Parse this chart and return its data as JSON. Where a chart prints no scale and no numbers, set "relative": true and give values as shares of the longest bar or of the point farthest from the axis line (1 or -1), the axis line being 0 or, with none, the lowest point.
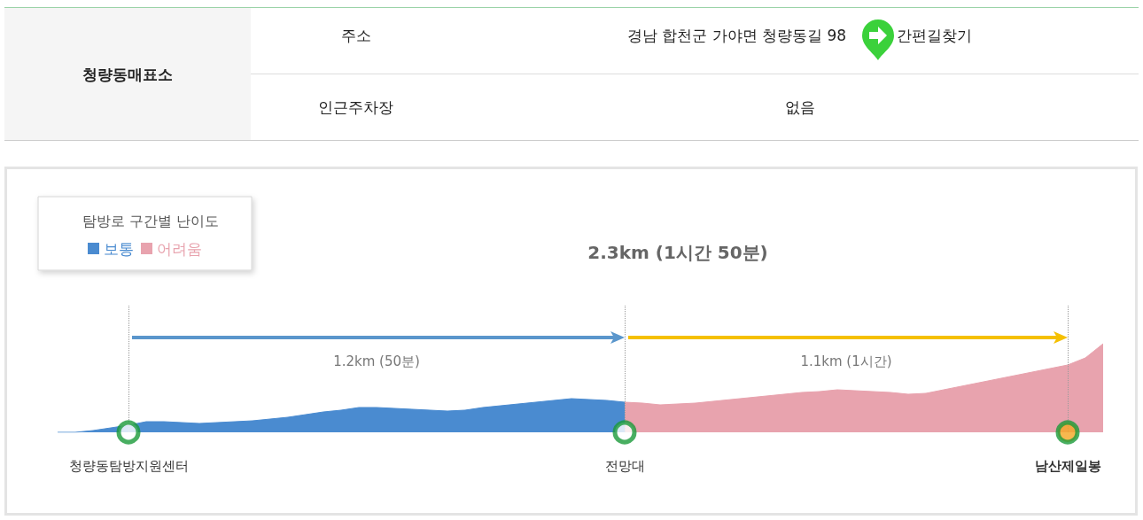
{
  "chart_data": {
    "type": "area",
    "relative": true,
    "title": "2.3km (1시간 50분)",
    "legend_title": "탐방로 구간별 난이도",
    "legend": "top left",
    "annotations": [
      "청량동매표소",
      "주소",
      "경남 합천군 가야면 청량동길 98",
      "간편길찾기",
      "인근주차장",
      "없음",
      "1.2km (50분)",
      "1.1km (1시간)"
    ],
    "categories": [
      null,
      null,
      null,
      null,
      "청량동탐방지원센터",
      null,
      null,
      null,
      null,
      null,
      null,
      null,
      null,
      null,
      null,
      null,
      null,
      null,
      null,
      null,
      null,
      null,
      null,
      null,
      null,
      null,
      null,
      null,
      null,
      null,
      null,
      null,
      "전망대",
      null,
      null,
      null,
      null,
      null,
      null,
      null,
      null,
      null,
      null,
      null,
      null,
      null,
      null,
      null,
      null,
      null,
      null,
      null,
      null,
      null,
      null,
      null,
      null,
      "남산제일봉",
      null,
      null
    ],
    "series": [
      {
        "name": "보통",
        "color": "#4a8bd0",
        "values": [
          0,
          0,
          0.02,
          0.05,
          0.08,
          0.12,
          0.12,
          0.11,
          0.1,
          0.11,
          0.12,
          0.13,
          0.15,
          0.17,
          0.2,
          0.23,
          0.25,
          0.28,
          0.28,
          0.27,
          0.26,
          0.25,
          0.24,
          0.25,
          0.28,
          0.3,
          0.32,
          0.34,
          0.36,
          0.38,
          0.37,
          0.36,
          0.34,
          null,
          null,
          null,
          null,
          null,
          null,
          null,
          null,
          null,
          null,
          null,
          null,
          null,
          null,
          null,
          null,
          null,
          null,
          null,
          null,
          null,
          null,
          null,
          null,
          null,
          null,
          null
        ]
      },
      {
        "name": "어려움",
        "color": "#e8a3ae",
        "values": [
          null,
          null,
          null,
          null,
          null,
          null,
          null,
          null,
          null,
          null,
          null,
          null,
          null,
          null,
          null,
          null,
          null,
          null,
          null,
          null,
          null,
          null,
          null,
          null,
          null,
          null,
          null,
          null,
          null,
          null,
          null,
          null,
          0.34,
          0.33,
          0.31,
          0.32,
          0.33,
          0.35,
          0.37,
          0.39,
          0.41,
          0.43,
          0.45,
          0.46,
          0.48,
          0.47,
          0.46,
          0.45,
          0.43,
          0.44,
          0.48,
          0.52,
          0.56,
          0.6,
          0.64,
          0.68,
          0.72,
          0.76,
          0.84,
          1
        ]
      },
      {
        "type": "scatter",
        "marker": "circle",
        "color": "#1a9a3a",
        "x": [
          "청량동탐방지원센터",
          "전망대",
          "남산제일봉"
        ],
        "values": [
          0,
          0,
          0
        ],
        "colors": [
          "#ffffff",
          "#ffffff",
          "#f5a623"
        ]
      }
    ],
    "ref_lines": [
      {
        "axis": "x",
        "value": "청량동탐방지원센터",
        "color": "#9a9a9a",
        "line_style": "dotted"
      },
      {
        "axis": "x",
        "value": "전망대",
        "color": "#9a9a9a",
        "line_style": "dotted"
      },
      {
        "axis": "x",
        "value": "남산제일봉",
        "color": "#9a9a9a",
        "line_style": "dotted"
      }
    ]
  }
}
